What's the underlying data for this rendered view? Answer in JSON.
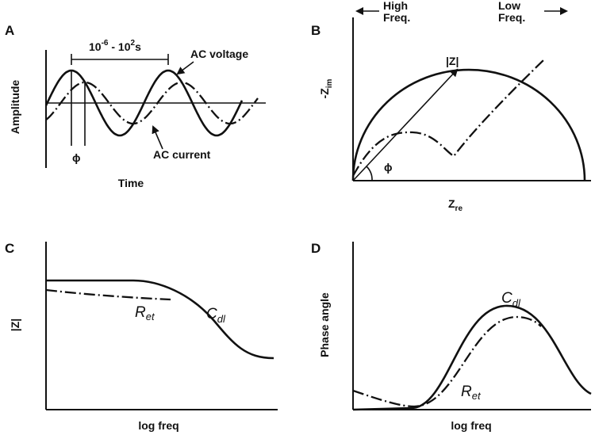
{
  "panel_a": {
    "letter": "A",
    "ylabel": "Amplitude",
    "xlabel": "Time",
    "period_label": "10",
    "period_exp1": "-6",
    "period_mid": " - 10",
    "period_exp2": "2",
    "period_unit": "s",
    "voltage_label": "AC voltage",
    "current_label": "AC current",
    "phi": "ϕ"
  },
  "panel_b": {
    "letter": "B",
    "high_freq_line1": "High",
    "high_freq_line2": "Freq.",
    "low_freq_line1": "Low",
    "low_freq_line2": "Freq.",
    "arrow_left": "←",
    "arrow_right": "→",
    "ylabel": "-Z",
    "ylabel_sub": "im",
    "xlabel": "Z",
    "xlabel_sub": "re",
    "modulus_label": "|Z|",
    "phi": "ϕ"
  },
  "panel_c": {
    "letter": "C",
    "ylabel": "|Z|",
    "xlabel": "log freq",
    "ret_label": "R",
    "ret_sub": "et",
    "cdl_label": "C",
    "cdl_sub": "dl"
  },
  "panel_d": {
    "letter": "D",
    "ylabel": "Phase angle",
    "xlabel": "log freq",
    "ret_label": "R",
    "ret_sub": "et",
    "cdl_label": "C",
    "cdl_sub": "dl"
  }
}
